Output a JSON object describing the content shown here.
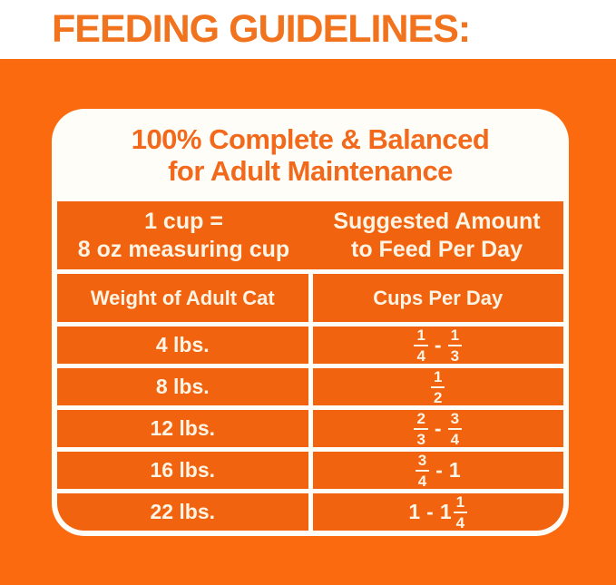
{
  "page": {
    "heading": "FEEDING GUIDELINES:"
  },
  "panel": {
    "title_line1": "100% Complete & Balanced",
    "title_line2": "for Adult Maintenance",
    "cup_note_line1": "1 cup =",
    "cup_note_line2": "8 oz measuring cup",
    "amount_header_line1": "Suggested Amount",
    "amount_header_line2": "to Feed Per Day",
    "weight_column_header": "Weight of Adult Cat",
    "cups_column_header": "Cups Per Day",
    "rows": [
      {
        "weight": "4 lbs.",
        "display": "1/4 - 1/3",
        "f1n": "1",
        "f1d": "4",
        "sep": "-",
        "f2n": "1",
        "f2d": "3"
      },
      {
        "weight": "8 lbs.",
        "display": "1/2",
        "f1n": "1",
        "f1d": "2"
      },
      {
        "weight": "12 lbs.",
        "display": "2/3 - 3/4",
        "f1n": "2",
        "f1d": "3",
        "sep": "-",
        "f2n": "3",
        "f2d": "4"
      },
      {
        "weight": "16 lbs.",
        "display": "3/4 - 1",
        "f1n": "3",
        "f1d": "4",
        "sep": "-",
        "tail": "1"
      },
      {
        "weight": "22 lbs.",
        "display": "1 - 1 1/4",
        "lead": "1",
        "sep": "-",
        "whole": "1",
        "f1n": "1",
        "f1d": "4"
      }
    ]
  },
  "colors": {
    "background_orange": "#FB6A0E",
    "cell_orange": "#F26310",
    "heading_orange": "#F1731E",
    "title_orange": "#F2691B",
    "text_cream": "#FCF4E4",
    "panel_white": "#FFFDF8"
  }
}
